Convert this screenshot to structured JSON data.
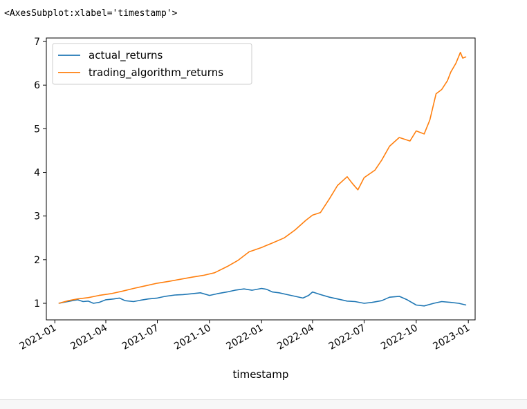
{
  "output_text": "<AxesSubplot:xlabel='timestamp'>",
  "chart_data": {
    "type": "line",
    "xlabel": "timestamp",
    "ylabel": "",
    "title": "",
    "x_type": "date",
    "xlim": [
      "2020-12-17",
      "2023-01-13"
    ],
    "ylim": [
      0.62,
      7.08
    ],
    "xticks": [
      "2021-01",
      "2021-04",
      "2021-07",
      "2021-10",
      "2022-01",
      "2022-04",
      "2022-07",
      "2022-10",
      "2023-01"
    ],
    "xtick_dates": [
      "2021-01-01",
      "2021-04-01",
      "2021-07-01",
      "2021-10-01",
      "2022-01-01",
      "2022-04-01",
      "2022-07-01",
      "2022-10-01",
      "2023-01-01"
    ],
    "yticks": [
      1,
      2,
      3,
      4,
      5,
      6,
      7
    ],
    "grid": false,
    "legend_position": "upper-left",
    "series": [
      {
        "name": "actual_returns",
        "color": "#1f77b4",
        "points": [
          [
            "2021-01-08",
            1.0
          ],
          [
            "2021-01-20",
            1.03
          ],
          [
            "2021-02-01",
            1.06
          ],
          [
            "2021-02-10",
            1.08
          ],
          [
            "2021-02-20",
            1.04
          ],
          [
            "2021-03-01",
            1.05
          ],
          [
            "2021-03-10",
            1.0
          ],
          [
            "2021-03-20",
            1.02
          ],
          [
            "2021-04-01",
            1.08
          ],
          [
            "2021-04-15",
            1.1
          ],
          [
            "2021-04-25",
            1.12
          ],
          [
            "2021-05-05",
            1.06
          ],
          [
            "2021-05-20",
            1.04
          ],
          [
            "2021-06-01",
            1.07
          ],
          [
            "2021-06-15",
            1.1
          ],
          [
            "2021-07-01",
            1.12
          ],
          [
            "2021-07-15",
            1.16
          ],
          [
            "2021-08-01",
            1.19
          ],
          [
            "2021-08-15",
            1.2
          ],
          [
            "2021-09-01",
            1.22
          ],
          [
            "2021-09-15",
            1.24
          ],
          [
            "2021-10-01",
            1.18
          ],
          [
            "2021-10-15",
            1.22
          ],
          [
            "2021-11-01",
            1.26
          ],
          [
            "2021-11-15",
            1.3
          ],
          [
            "2021-12-01",
            1.33
          ],
          [
            "2021-12-15",
            1.3
          ],
          [
            "2022-01-01",
            1.34
          ],
          [
            "2022-01-10",
            1.32
          ],
          [
            "2022-01-20",
            1.26
          ],
          [
            "2022-02-01",
            1.24
          ],
          [
            "2022-02-15",
            1.2
          ],
          [
            "2022-03-01",
            1.16
          ],
          [
            "2022-03-15",
            1.12
          ],
          [
            "2022-03-25",
            1.18
          ],
          [
            "2022-04-01",
            1.26
          ],
          [
            "2022-04-15",
            1.2
          ],
          [
            "2022-05-01",
            1.14
          ],
          [
            "2022-05-15",
            1.1
          ],
          [
            "2022-06-01",
            1.05
          ],
          [
            "2022-06-15",
            1.04
          ],
          [
            "2022-07-01",
            1.0
          ],
          [
            "2022-07-15",
            1.02
          ],
          [
            "2022-08-01",
            1.06
          ],
          [
            "2022-08-15",
            1.14
          ],
          [
            "2022-09-01",
            1.16
          ],
          [
            "2022-09-15",
            1.08
          ],
          [
            "2022-10-01",
            0.96
          ],
          [
            "2022-10-15",
            0.94
          ],
          [
            "2022-11-01",
            1.0
          ],
          [
            "2022-11-15",
            1.04
          ],
          [
            "2022-12-01",
            1.02
          ],
          [
            "2022-12-15",
            1.0
          ],
          [
            "2022-12-28",
            0.96
          ]
        ]
      },
      {
        "name": "trading_algorithm_returns",
        "color": "#ff7f0e",
        "points": [
          [
            "2021-01-08",
            1.0
          ],
          [
            "2021-01-25",
            1.06
          ],
          [
            "2021-02-10",
            1.1
          ],
          [
            "2021-03-01",
            1.13
          ],
          [
            "2021-03-20",
            1.18
          ],
          [
            "2021-04-10",
            1.22
          ],
          [
            "2021-05-01",
            1.28
          ],
          [
            "2021-05-20",
            1.34
          ],
          [
            "2021-06-10",
            1.4
          ],
          [
            "2021-07-01",
            1.46
          ],
          [
            "2021-07-20",
            1.5
          ],
          [
            "2021-08-10",
            1.55
          ],
          [
            "2021-09-01",
            1.6
          ],
          [
            "2021-09-20",
            1.64
          ],
          [
            "2021-10-10",
            1.7
          ],
          [
            "2021-11-01",
            1.84
          ],
          [
            "2021-11-20",
            1.98
          ],
          [
            "2021-12-10",
            2.18
          ],
          [
            "2022-01-01",
            2.28
          ],
          [
            "2022-01-20",
            2.38
          ],
          [
            "2022-02-10",
            2.5
          ],
          [
            "2022-03-01",
            2.68
          ],
          [
            "2022-03-20",
            2.9
          ],
          [
            "2022-04-01",
            3.02
          ],
          [
            "2022-04-15",
            3.08
          ],
          [
            "2022-05-01",
            3.4
          ],
          [
            "2022-05-15",
            3.7
          ],
          [
            "2022-06-01",
            3.9
          ],
          [
            "2022-06-10",
            3.75
          ],
          [
            "2022-06-20",
            3.6
          ],
          [
            "2022-07-01",
            3.88
          ],
          [
            "2022-07-20",
            4.05
          ],
          [
            "2022-08-01",
            4.28
          ],
          [
            "2022-08-15",
            4.6
          ],
          [
            "2022-09-01",
            4.8
          ],
          [
            "2022-09-20",
            4.72
          ],
          [
            "2022-10-01",
            4.95
          ],
          [
            "2022-10-15",
            4.88
          ],
          [
            "2022-10-25",
            5.2
          ],
          [
            "2022-11-05",
            5.8
          ],
          [
            "2022-11-15",
            5.9
          ],
          [
            "2022-11-25",
            6.1
          ],
          [
            "2022-12-01",
            6.3
          ],
          [
            "2022-12-10",
            6.5
          ],
          [
            "2022-12-18",
            6.75
          ],
          [
            "2022-12-22",
            6.62
          ],
          [
            "2022-12-28",
            6.65
          ]
        ]
      }
    ]
  }
}
